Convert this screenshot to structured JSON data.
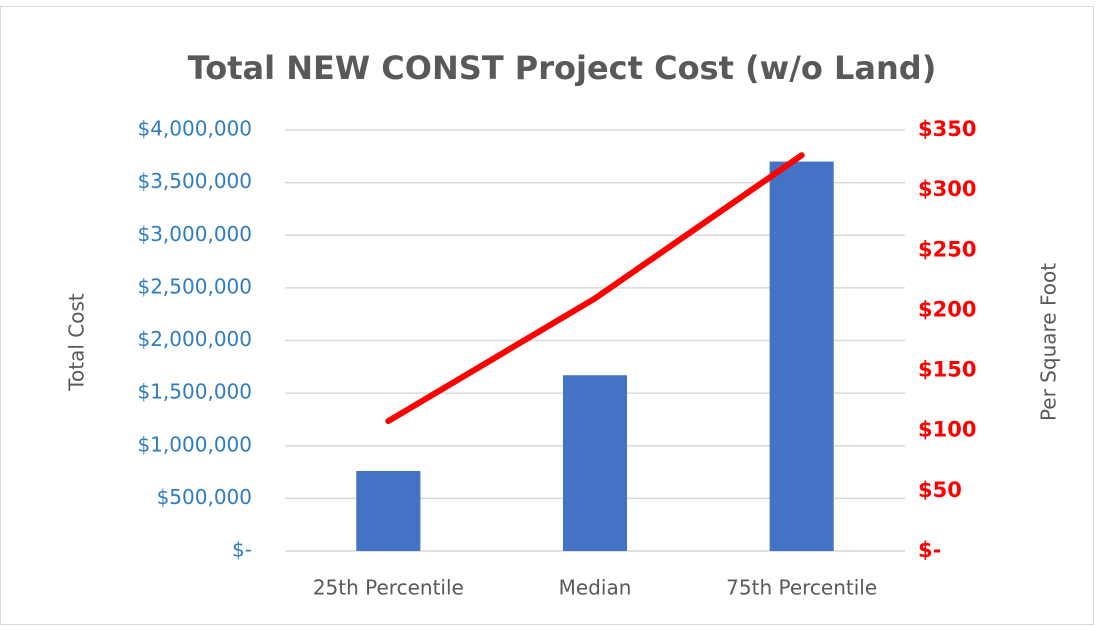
{
  "chart_data": {
    "type": "bar",
    "title": "Total NEW CONST Project Cost (w/o Land)",
    "ylabel": "Total Cost",
    "y2label": "Per Square Foot",
    "categories": [
      "25th Percentile",
      "Median",
      "75th Percentile"
    ],
    "series": [
      {
        "type": "bar",
        "color": "#4472c4",
        "values": [
          760000,
          1670000,
          3700000
        ]
      },
      {
        "type": "line",
        "axis": "y2",
        "color": "#ff0000",
        "values": [
          108,
          210,
          329
        ]
      }
    ],
    "ylim": [
      0,
      4000000
    ],
    "yticks": [
      {
        "value": 0,
        "label": "$-"
      },
      {
        "value": 500000,
        "label": "$500,000"
      },
      {
        "value": 1000000,
        "label": "$1,000,000"
      },
      {
        "value": 1500000,
        "label": "$1,500,000"
      },
      {
        "value": 2000000,
        "label": "$2,000,000"
      },
      {
        "value": 2500000,
        "label": "$2,500,000"
      },
      {
        "value": 3000000,
        "label": "$3,000,000"
      },
      {
        "value": 3500000,
        "label": "$3,500,000"
      },
      {
        "value": 4000000,
        "label": "$4,000,000"
      }
    ],
    "y2lim": [
      0,
      350
    ],
    "y2ticks": [
      {
        "value": 0,
        "label": "$-"
      },
      {
        "value": 50,
        "label": "$50"
      },
      {
        "value": 100,
        "label": "$100"
      },
      {
        "value": 150,
        "label": "$150"
      },
      {
        "value": 200,
        "label": "$200"
      },
      {
        "value": 250,
        "label": "$250"
      },
      {
        "value": 300,
        "label": "$300"
      },
      {
        "value": 350,
        "label": "$350"
      }
    ],
    "grid": true
  }
}
